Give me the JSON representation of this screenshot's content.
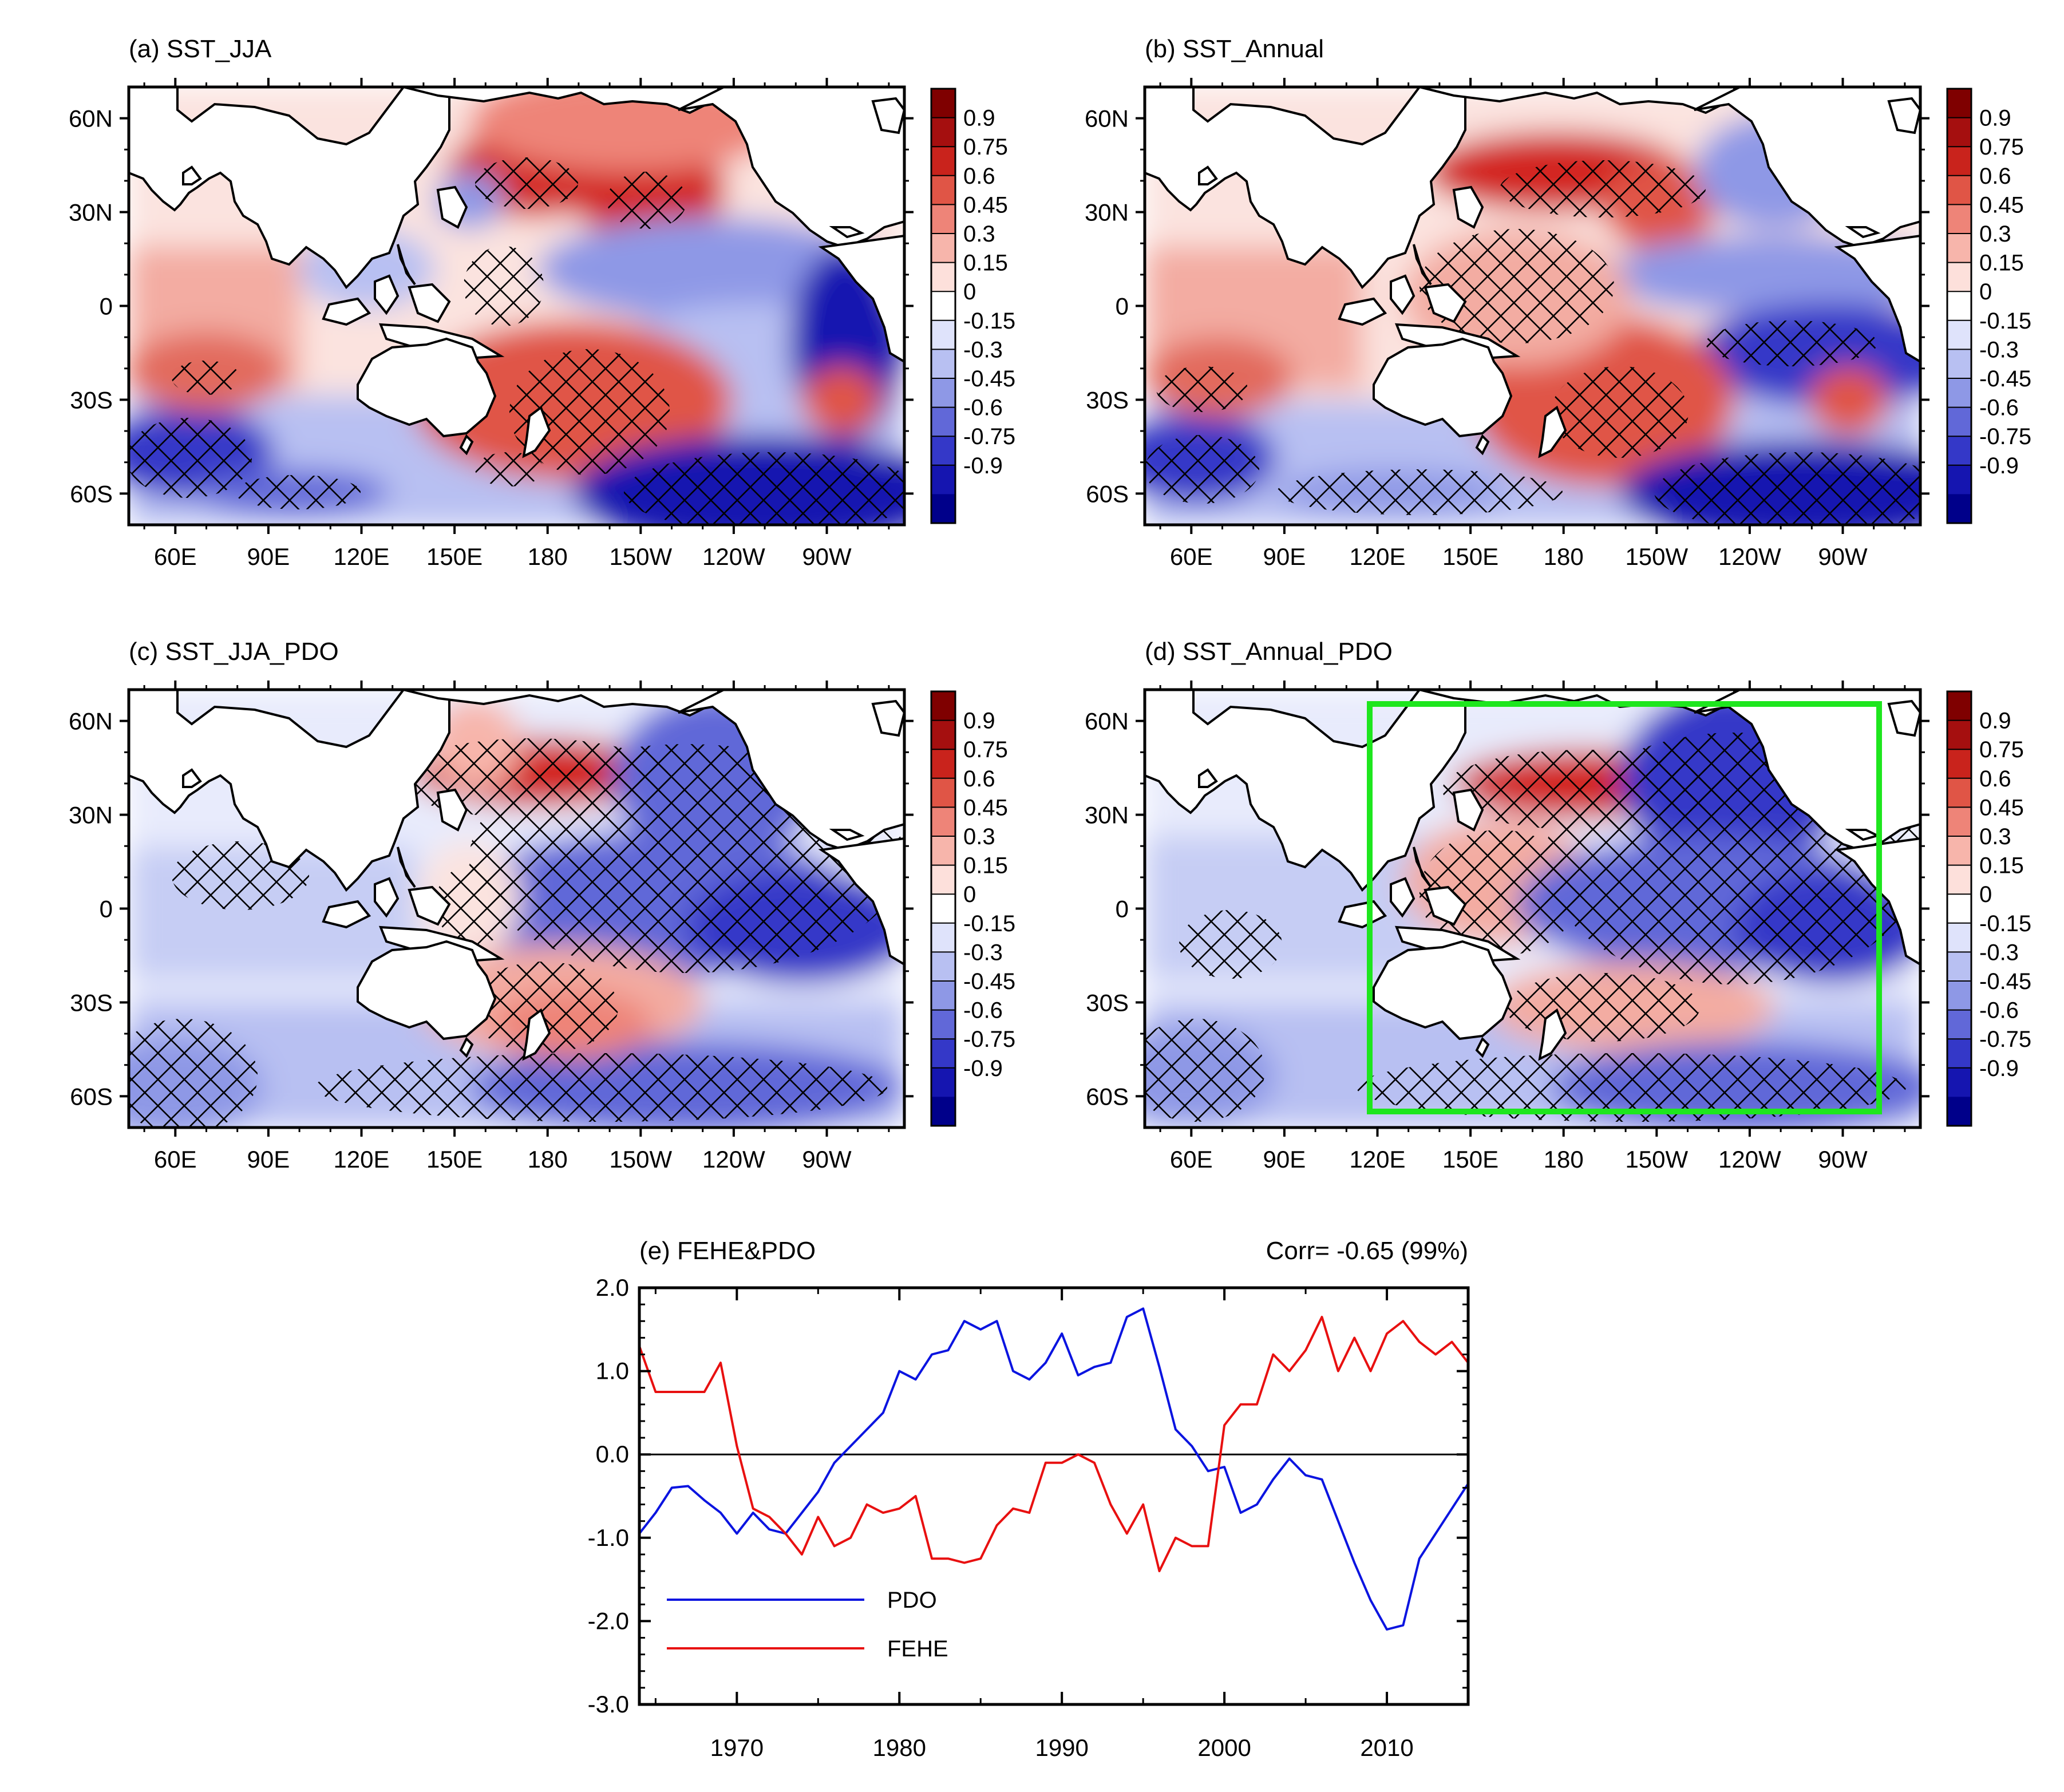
{
  "colors": {
    "pos_scale": [
      "#fde0db",
      "#f7b5ab",
      "#ee8478",
      "#e05546",
      "#c9231c",
      "#a50f0f",
      "#7f0000"
    ],
    "neg_scale": [
      "#dfe3fb",
      "#b8c0f2",
      "#8e98e6",
      "#6168d8",
      "#3438c8",
      "#1515b0",
      "#00008a"
    ],
    "pdo_line": "#0a14e0",
    "fehe_line": "#e81010",
    "box": "#1ee61e"
  },
  "maps": {
    "lon_ticks": [
      "60E",
      "90E",
      "120E",
      "150E",
      "180",
      "150W",
      "120W",
      "90W"
    ],
    "lat_ticks": [
      "60N",
      "30N",
      "0",
      "30S",
      "60S"
    ],
    "colorbar": [
      "0.9",
      "0.75",
      "0.6",
      "0.45",
      "0.3",
      "0.15",
      "0",
      "-0.15",
      "-0.3",
      "-0.45",
      "-0.6",
      "-0.75",
      "-0.9"
    ],
    "panels": [
      {
        "title": "(a) SST_JJA"
      },
      {
        "title": "(b) SST_Annual"
      },
      {
        "title": "(c) SST_JJA_PDO"
      },
      {
        "title": "(d) SST_Annual_PDO"
      }
    ]
  },
  "chart_data": {
    "type": "line",
    "title": "(e) FEHE&PDO",
    "annotation": "Corr= -0.65 (99%)",
    "xlabel": "",
    "ylabel": "",
    "xlim": [
      1964,
      2015
    ],
    "ylim": [
      -3.0,
      2.0
    ],
    "x_ticks": [
      "1970",
      "1980",
      "1990",
      "2000",
      "2010"
    ],
    "y_ticks": [
      "2.0",
      "1.0",
      "0.0",
      "-1.0",
      "-2.0",
      "-3.0"
    ],
    "x": [
      1964,
      1965,
      1966,
      1967,
      1968,
      1969,
      1970,
      1971,
      1972,
      1973,
      1974,
      1975,
      1976,
      1977,
      1978,
      1979,
      1980,
      1981,
      1982,
      1983,
      1984,
      1985,
      1986,
      1987,
      1988,
      1989,
      1990,
      1991,
      1992,
      1993,
      1994,
      1995,
      1996,
      1997,
      1998,
      1999,
      2000,
      2001,
      2002,
      2003,
      2004,
      2005,
      2006,
      2007,
      2008,
      2009,
      2010,
      2011,
      2012,
      2013,
      2014,
      2015
    ],
    "series": [
      {
        "name": "PDO",
        "color": "#0a14e0",
        "values": [
          -0.95,
          -0.7,
          -0.4,
          -0.38,
          -0.55,
          -0.7,
          -0.95,
          -0.7,
          -0.9,
          -0.95,
          -0.7,
          -0.45,
          -0.1,
          0.1,
          0.3,
          0.5,
          1.0,
          0.9,
          1.2,
          1.25,
          1.6,
          1.5,
          1.6,
          1.0,
          0.9,
          1.1,
          1.45,
          0.95,
          1.05,
          1.1,
          1.65,
          1.75,
          1.05,
          0.3,
          0.1,
          -0.2,
          -0.15,
          -0.7,
          -0.6,
          -0.3,
          -0.05,
          -0.25,
          -0.3,
          -0.8,
          -1.3,
          -1.75,
          -2.1,
          -2.05,
          -1.25,
          -0.95,
          -0.65,
          -0.35
        ]
      },
      {
        "name": "FEHE",
        "color": "#e81010",
        "values": [
          1.3,
          0.75,
          0.75,
          0.75,
          0.75,
          1.1,
          0.1,
          -0.65,
          -0.75,
          -0.95,
          -1.2,
          -0.75,
          -1.1,
          -1.0,
          -0.6,
          -0.7,
          -0.65,
          -0.5,
          -1.25,
          -1.25,
          -1.3,
          -1.25,
          -0.85,
          -0.65,
          -0.7,
          -0.1,
          -0.1,
          0.0,
          -0.1,
          -0.6,
          -0.95,
          -0.6,
          -1.4,
          -1.0,
          -1.1,
          -1.1,
          0.35,
          0.6,
          0.6,
          1.2,
          1.0,
          1.25,
          1.65,
          1.0,
          1.4,
          1.0,
          1.45,
          1.6,
          1.35,
          1.2,
          1.35,
          1.1
        ]
      }
    ]
  }
}
